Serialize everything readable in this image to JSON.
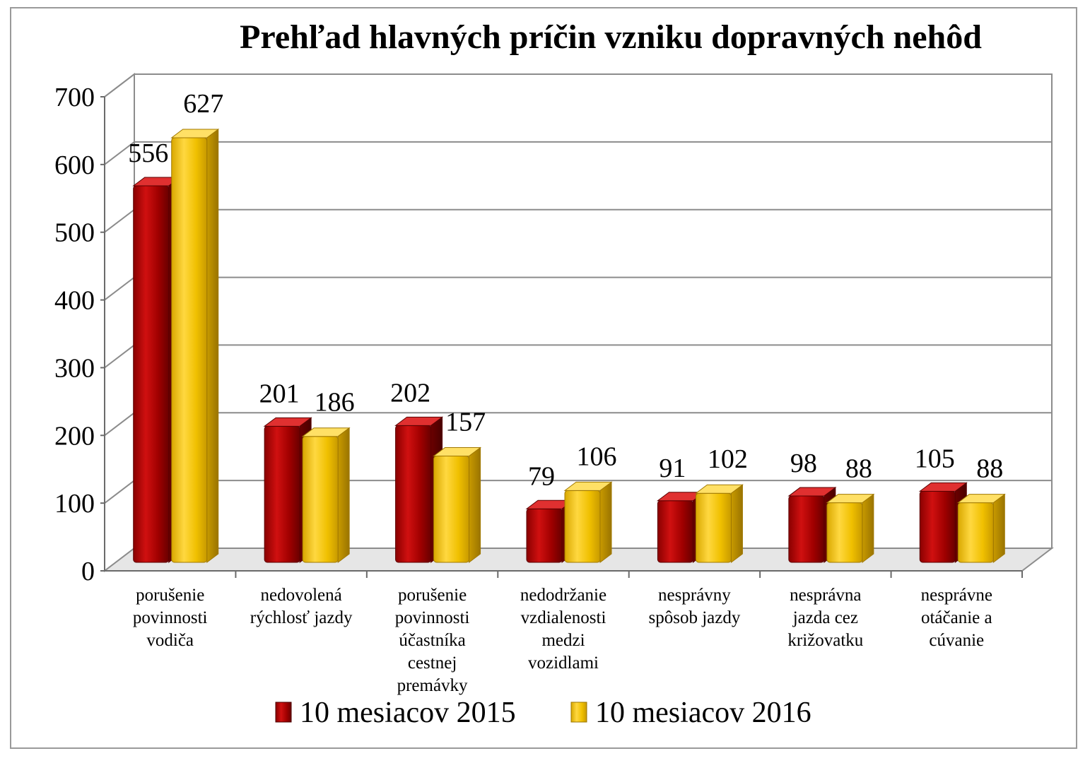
{
  "chart_data": {
    "type": "bar",
    "title": "Prehľad hlavných príčin vzniku dopravných nehôd",
    "xlabel": "",
    "ylabel": "",
    "ylim": [
      0,
      700
    ],
    "yticks": [
      "0",
      "100",
      "200",
      "300",
      "400",
      "500",
      "600",
      "700"
    ],
    "grid": true,
    "legend_position": "bottom",
    "categories": [
      [
        "porušenie",
        "povinnosti",
        "vodiča"
      ],
      [
        "nedovolená",
        "rýchlosť jazdy"
      ],
      [
        "porušenie",
        "povinnosti",
        "účastníka",
        "cestnej",
        "premávky"
      ],
      [
        "nedodržanie",
        "vzdialenosti",
        "medzi",
        "vozidlami"
      ],
      [
        "nesprávny",
        "spôsob jazdy"
      ],
      [
        "nesprávna",
        "jazda cez",
        "križovatku"
      ],
      [
        "nesprávne",
        "otáčanie a",
        "cúvanie"
      ]
    ],
    "series": [
      {
        "name": "10 mesiacov 2015",
        "color": "#b30000",
        "values": [
          556,
          201,
          202,
          79,
          91,
          98,
          105
        ]
      },
      {
        "name": "10 mesiacov 2016",
        "color": "#f0c000",
        "values": [
          627,
          186,
          157,
          106,
          102,
          88,
          88
        ]
      }
    ]
  }
}
